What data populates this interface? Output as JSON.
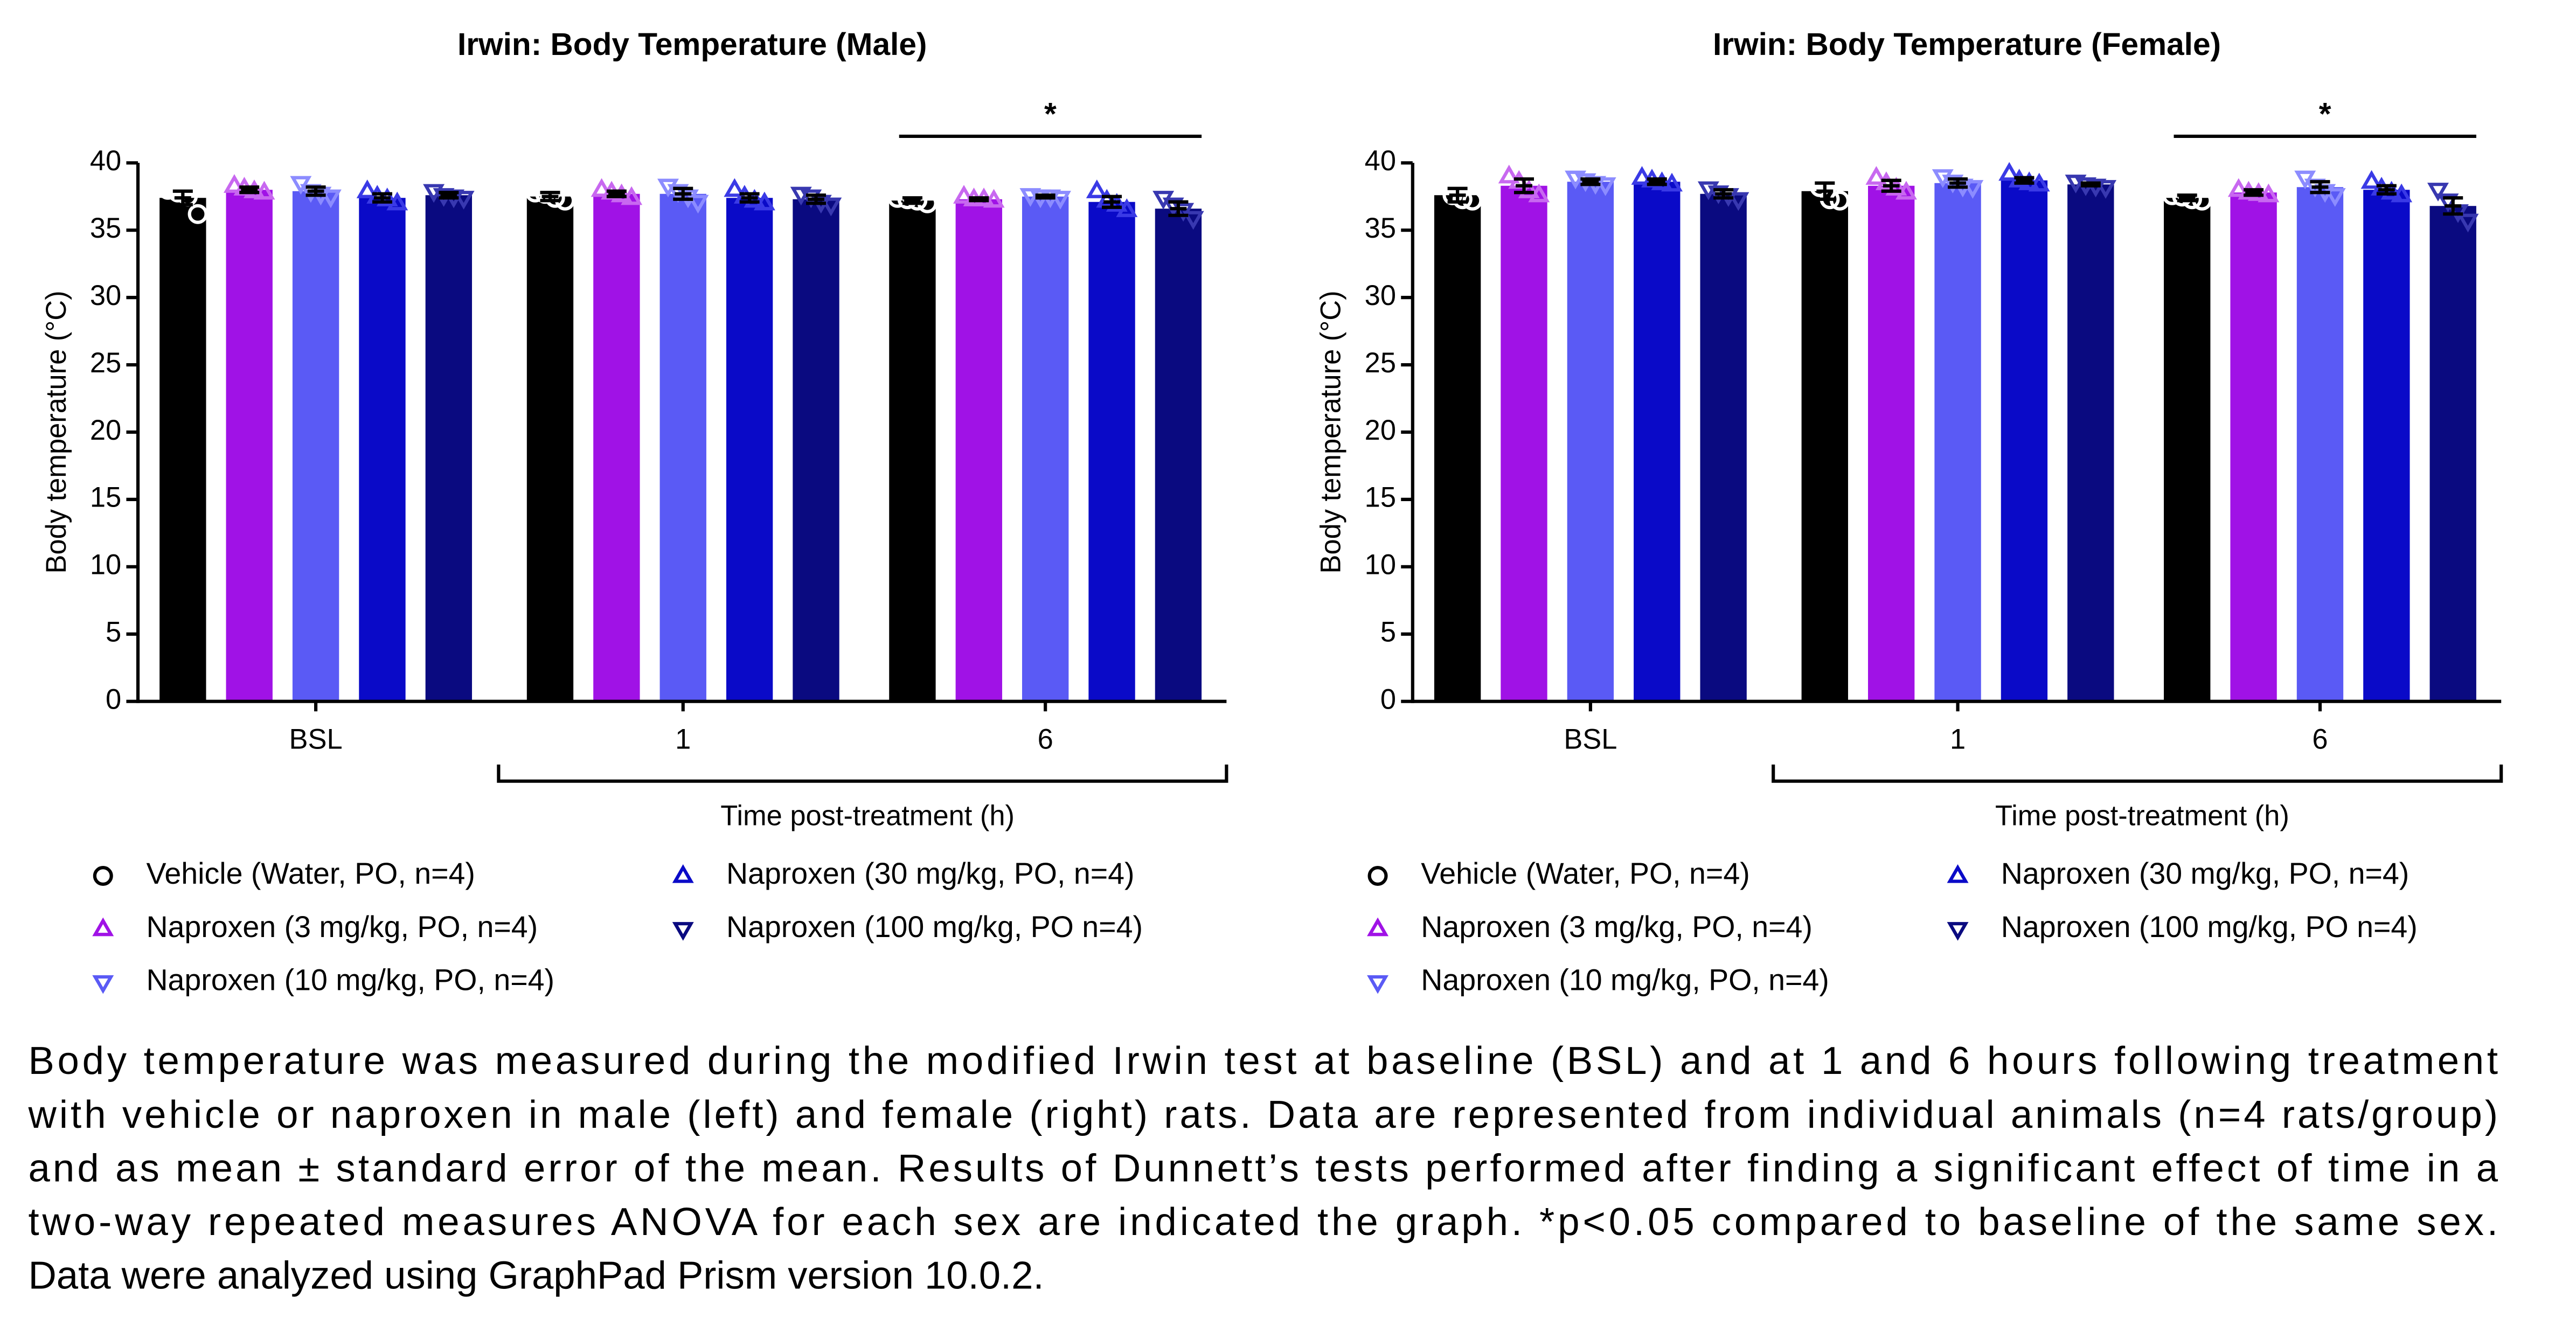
{
  "chart_data": [
    {
      "type": "bar",
      "title": "Irwin: Body Temperature (Male)",
      "x_label": "Time post-treatment (h)",
      "y_label": "Body temperature (°C)",
      "categories": [
        "BSL",
        "1",
        "6"
      ],
      "ylim": [
        0,
        40
      ],
      "yticks": [
        0,
        5,
        10,
        15,
        20,
        25,
        30,
        35,
        40
      ],
      "annotations": [
        {
          "text": "*"
        }
      ],
      "series": [
        {
          "name": "Vehicle (Water, PO, n=4)",
          "color": "#000000",
          "point_color": "#ffffff",
          "marker": "circle",
          "values": [
            37.4,
            37.5,
            37.2
          ],
          "errors": [
            0.5,
            0.3,
            0.2
          ],
          "points": [
            [
              38.0,
              37.8,
              37.5,
              36.2
            ],
            [
              37.8,
              37.7,
              37.4,
              37.2
            ],
            [
              37.4,
              37.3,
              37.2,
              37.0
            ]
          ]
        },
        {
          "name": "Naproxen (3 mg/kg, PO, n=4)",
          "color": "#a012e6",
          "point_color": "#c868f0",
          "marker": "triangle-up",
          "values": [
            38.0,
            37.7,
            37.3
          ],
          "errors": [
            0.2,
            0.2,
            0.1
          ],
          "points": [
            [
              38.3,
              38.1,
              37.9,
              37.8
            ],
            [
              38.0,
              37.8,
              37.6,
              37.4
            ],
            [
              37.5,
              37.3,
              37.3,
              37.2
            ]
          ]
        },
        {
          "name": "Naproxen (10 mg/kg, PO, n=4)",
          "color": "#5a5af5",
          "point_color": "#8c8cff",
          "marker": "triangle-down",
          "values": [
            37.9,
            37.7,
            37.5
          ],
          "errors": [
            0.3,
            0.4,
            0.1
          ],
          "points": [
            [
              38.5,
              37.9,
              37.7,
              37.5
            ],
            [
              38.3,
              37.9,
              37.5,
              37.1
            ],
            [
              37.6,
              37.5,
              37.5,
              37.4
            ]
          ]
        },
        {
          "name": "Naproxen (30 mg/kg, PO, n=4)",
          "color": "#0a0ac8",
          "point_color": "#3a3ae6",
          "marker": "triangle-up",
          "values": [
            37.4,
            37.4,
            37.1
          ],
          "errors": [
            0.3,
            0.3,
            0.4
          ],
          "points": [
            [
              37.9,
              37.5,
              37.3,
              37.0
            ],
            [
              38.0,
              37.5,
              37.2,
              37.0
            ],
            [
              37.9,
              37.2,
              36.9,
              36.5
            ]
          ]
        },
        {
          "name": "Naproxen (100 mg/kg, PO n=4)",
          "color": "#0a0a80",
          "point_color": "#3838b0",
          "marker": "triangle-down",
          "values": [
            37.6,
            37.3,
            36.6
          ],
          "errors": [
            0.2,
            0.3,
            0.5
          ],
          "points": [
            [
              37.9,
              37.6,
              37.5,
              37.4
            ],
            [
              37.7,
              37.5,
              37.1,
              36.9
            ],
            [
              37.4,
              36.9,
              36.5,
              35.9
            ]
          ]
        }
      ]
    },
    {
      "type": "bar",
      "title": "Irwin: Body Temperature (Female)",
      "x_label": "Time post-treatment (h)",
      "y_label": "Body temperature (°C)",
      "categories": [
        "BSL",
        "1",
        "6"
      ],
      "ylim": [
        0,
        40
      ],
      "yticks": [
        0,
        5,
        10,
        15,
        20,
        25,
        30,
        35,
        40
      ],
      "annotations": [
        {
          "text": "*"
        }
      ],
      "series": [
        {
          "name": "Vehicle (Water, PO, n=4)",
          "color": "#000000",
          "point_color": "#ffffff",
          "marker": "circle",
          "values": [
            37.6,
            37.9,
            37.4
          ],
          "errors": [
            0.5,
            0.6,
            0.2
          ],
          "points": [
            [
              38.5,
              37.6,
              37.3,
              37.2
            ],
            [
              38.7,
              38.2,
              37.3,
              37.2
            ],
            [
              37.6,
              37.5,
              37.3,
              37.2
            ]
          ]
        },
        {
          "name": "Naproxen (3 mg/kg, PO, n=4)",
          "color": "#a012e6",
          "point_color": "#c868f0",
          "marker": "triangle-up",
          "values": [
            38.3,
            38.3,
            37.8
          ],
          "errors": [
            0.5,
            0.4,
            0.2
          ],
          "points": [
            [
              39.0,
              38.6,
              37.9,
              37.6
            ],
            [
              38.9,
              38.5,
              38.1,
              37.8
            ],
            [
              38.0,
              37.8,
              37.7,
              37.6
            ]
          ]
        },
        {
          "name": "Naproxen (10 mg/kg, PO, n=4)",
          "color": "#5a5af5",
          "point_color": "#8c8cff",
          "marker": "triangle-down",
          "values": [
            38.6,
            38.5,
            38.2
          ],
          "errors": [
            0.2,
            0.3,
            0.4
          ],
          "points": [
            [
              38.9,
              38.7,
              38.5,
              38.4
            ],
            [
              39.0,
              38.6,
              38.3,
              38.2
            ],
            [
              38.9,
              38.3,
              37.9,
              37.6
            ]
          ]
        },
        {
          "name": "Naproxen (30 mg/kg, PO, n=4)",
          "color": "#0a0ac8",
          "point_color": "#3a3ae6",
          "marker": "triangle-up",
          "values": [
            38.6,
            38.7,
            38.0
          ],
          "errors": [
            0.2,
            0.2,
            0.3
          ],
          "points": [
            [
              38.9,
              38.7,
              38.5,
              38.4
            ],
            [
              39.2,
              38.7,
              38.5,
              38.4
            ],
            [
              38.6,
              38.1,
              37.8,
              37.6
            ]
          ]
        },
        {
          "name": "Naproxen (100 mg/kg, PO n=4)",
          "color": "#0a0a80",
          "point_color": "#3838b0",
          "marker": "triangle-down",
          "values": [
            37.7,
            38.4,
            36.8
          ],
          "errors": [
            0.3,
            0.1,
            0.6
          ],
          "points": [
            [
              38.1,
              37.8,
              37.6,
              37.3
            ],
            [
              38.6,
              38.4,
              38.3,
              38.2
            ],
            [
              38.0,
              37.2,
              36.4,
              35.7
            ]
          ]
        }
      ]
    }
  ],
  "caption": [
    "Body temperature was measured during the modified Irwin test at baseline (BSL) and at 1 and 6 hours following treatment",
    "with vehicle or naproxen in male (left) and female (right) rats. Data are represented from individual animals (n=4 rats/group)",
    "and as mean ± standard error of the mean. Results of Dunnett’s tests performed after finding a significant effect of time in a",
    "two-way repeated measures ANOVA for each sex are indicated the graph. *p<0.05 compared to baseline of the same sex.",
    "Data were analyzed using GraphPad Prism version 10.0.2."
  ]
}
